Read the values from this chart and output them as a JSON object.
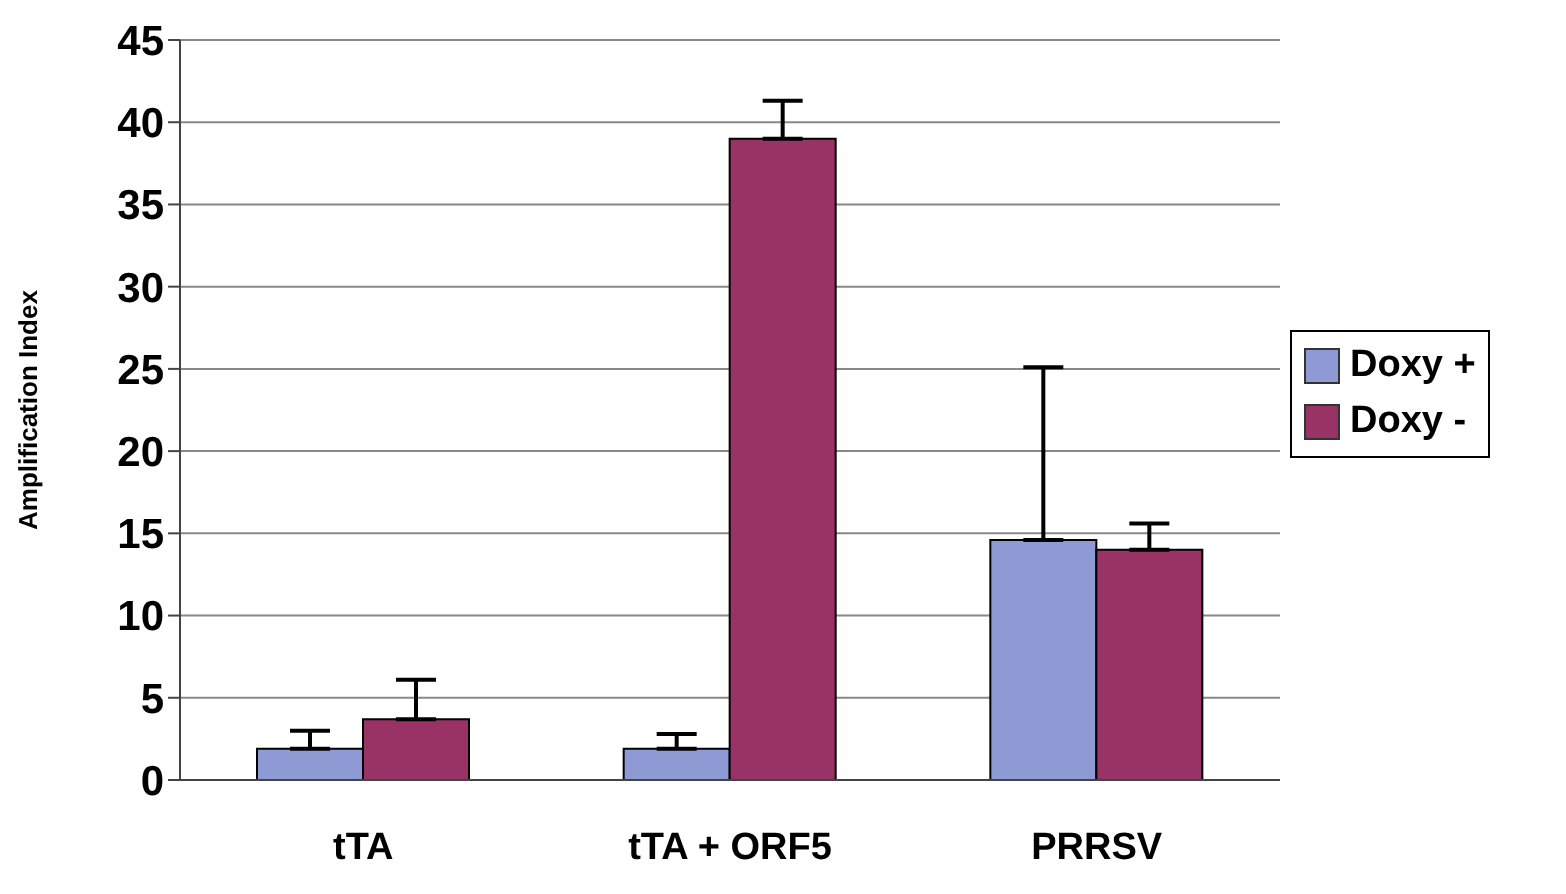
{
  "chart_data": {
    "type": "bar",
    "ylabel": "Amplification Index",
    "categories": [
      "tTA",
      "tTA + ORF5",
      "PRRSV"
    ],
    "series": [
      {
        "name": "Doxy +",
        "color": "#8e9ad4",
        "values": [
          1.9,
          1.9,
          14.6
        ],
        "errors": [
          [
            1.9,
            3.0
          ],
          [
            1.9,
            2.8
          ],
          [
            14.6,
            25.1
          ]
        ]
      },
      {
        "name": "Doxy -",
        "color": "#993366",
        "values": [
          3.7,
          39,
          14.0
        ],
        "errors": [
          [
            3.7,
            6.1
          ],
          [
            39,
            41.3
          ],
          [
            14.0,
            15.6
          ]
        ]
      }
    ],
    "ylim": [
      0,
      45
    ],
    "yticks": [
      0,
      5,
      10,
      15,
      20,
      25,
      30,
      35,
      40,
      45
    ],
    "grid": "y",
    "legend": "right"
  }
}
